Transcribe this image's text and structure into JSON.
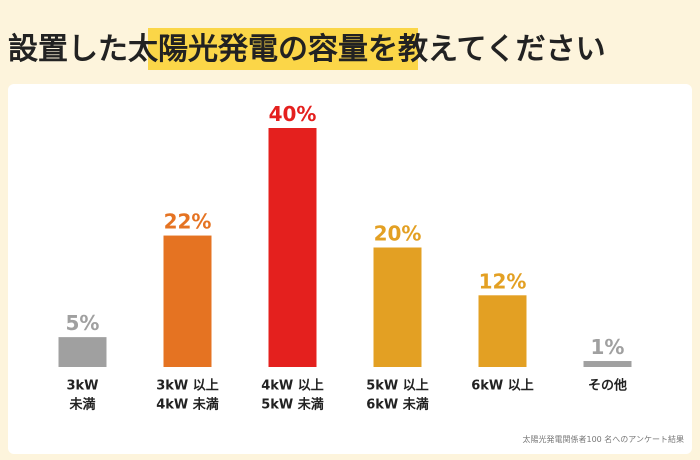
{
  "chart_data": {
    "type": "bar",
    "title_parts": [
      "設置した",
      "太陽光発電の容量",
      "を教えてください"
    ],
    "categories": [
      [
        "3kW",
        "未満"
      ],
      [
        "3kW 以上",
        "4kW 未満"
      ],
      [
        "4kW 以上",
        "5kW 未満"
      ],
      [
        "5kW 以上",
        "6kW 未満"
      ],
      [
        "6kW 以上"
      ],
      [
        "その他"
      ]
    ],
    "values": [
      5,
      22,
      40,
      20,
      12,
      1
    ],
    "value_labels": [
      "5%",
      "22%",
      "40%",
      "20%",
      "12%",
      "1%"
    ],
    "colors": [
      "#a0a0a0",
      "#e57322",
      "#e4201e",
      "#e3a023",
      "#e3a023",
      "#a0a0a0"
    ],
    "note": "太陽光発電関係者100 名へのアンケート結果"
  }
}
